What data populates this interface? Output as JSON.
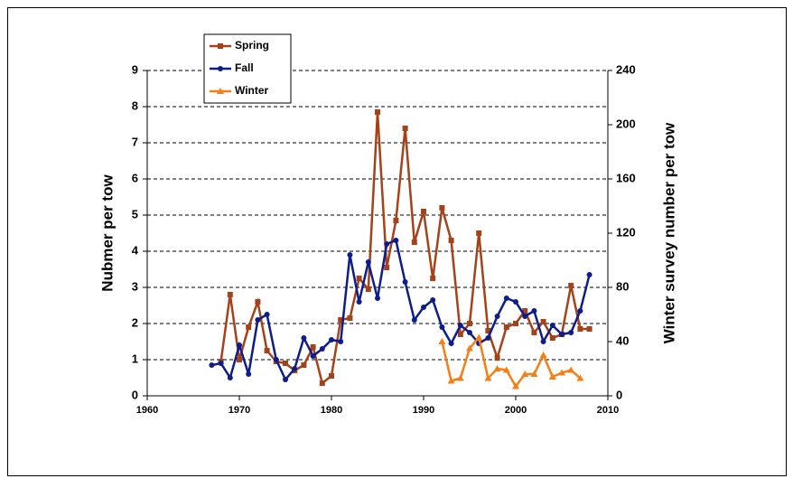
{
  "chart_data": {
    "type": "line",
    "y_label": "Nubmer per tow",
    "y2_label": "Winter survey number per tow",
    "x": [
      1967,
      1968,
      1969,
      1970,
      1971,
      1972,
      1973,
      1974,
      1975,
      1976,
      1977,
      1978,
      1979,
      1980,
      1981,
      1982,
      1983,
      1984,
      1985,
      1986,
      1987,
      1988,
      1989,
      1990,
      1991,
      1992,
      1993,
      1994,
      1995,
      1996,
      1997,
      1998,
      1999,
      2000,
      2001,
      2002,
      2003,
      2004,
      2005,
      2006,
      2007,
      2008
    ],
    "series": [
      {
        "name": "Spring",
        "color": "#a5421a",
        "marker": "square",
        "values": [
          null,
          0.95,
          2.8,
          1.0,
          1.9,
          2.6,
          1.25,
          0.95,
          0.9,
          0.7,
          0.85,
          1.35,
          0.35,
          0.55,
          2.1,
          2.15,
          3.25,
          2.95,
          7.85,
          3.55,
          4.85,
          7.4,
          4.25,
          5.1,
          3.25,
          5.2,
          4.3,
          1.7,
          2.0,
          4.5,
          1.8,
          1.05,
          1.9,
          2.0,
          2.35,
          1.75,
          2.05,
          1.6,
          1.7,
          3.05,
          1.85,
          1.85
        ]
      },
      {
        "name": "Fall",
        "color": "#0d1d8c",
        "marker": "circle",
        "values": [
          0.85,
          0.9,
          0.5,
          1.4,
          0.6,
          2.1,
          2.25,
          1.0,
          0.45,
          0.75,
          1.6,
          1.1,
          1.3,
          1.55,
          1.5,
          3.9,
          2.6,
          3.7,
          2.7,
          4.2,
          4.3,
          3.15,
          2.1,
          2.45,
          2.65,
          1.9,
          1.45,
          1.95,
          1.75,
          1.45,
          1.6,
          2.2,
          2.7,
          2.6,
          2.2,
          2.35,
          1.5,
          1.95,
          1.7,
          1.75,
          2.35,
          3.35
        ]
      },
      {
        "name": "Winter",
        "color": "#f57f17",
        "marker": "triangle",
        "axis": "y2",
        "values": [
          null,
          null,
          null,
          null,
          null,
          null,
          null,
          null,
          null,
          null,
          null,
          null,
          null,
          null,
          null,
          null,
          null,
          null,
          null,
          null,
          null,
          null,
          null,
          null,
          null,
          40,
          11,
          13,
          35,
          43,
          13,
          20,
          19,
          7,
          16,
          16,
          30,
          14,
          17,
          19,
          13,
          null
        ]
      }
    ],
    "xlim": [
      1960,
      2010
    ],
    "xticks": [
      1960,
      1970,
      1980,
      1990,
      2000,
      2010
    ],
    "ylim": [
      0,
      9
    ],
    "yticks": [
      0,
      1,
      2,
      3,
      4,
      5,
      6,
      7,
      8,
      9
    ],
    "y2lim": [
      0,
      240
    ],
    "y2ticks": [
      0,
      40,
      80,
      120,
      160,
      200,
      240
    ],
    "grid": true,
    "legend": "top-left"
  }
}
